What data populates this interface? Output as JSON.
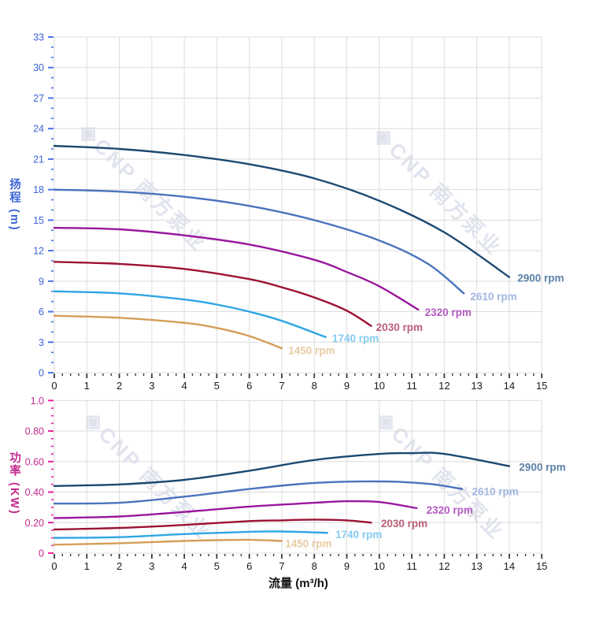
{
  "watermark": {
    "logo_glyph": "◈",
    "text": "CNP 南方泵业"
  },
  "flow_axis_label": "流量 (m³/h)",
  "palette": {
    "grid": "#dcdcdc",
    "head_axis_label": "#3c64d4",
    "head_axis_tick": "#4a73e8",
    "power_axis_label": "#c12a8c",
    "power_axis_tick": "#e8219e",
    "x_axis_label": "#1a1a1a",
    "x_axis_tick": "#3a3a3a"
  },
  "chart_data": [
    {
      "type": "line",
      "id": "head",
      "ylabel": "扬程",
      "yunit": "(m)",
      "xlim": [
        0,
        15
      ],
      "ylim": [
        0,
        33
      ],
      "xtick_step": 1,
      "xminor_step": 0.25,
      "ytick_step": 3,
      "yminor_step": 1,
      "grid": true,
      "yticks": [
        0,
        3,
        6,
        9,
        12,
        15,
        18,
        21,
        24,
        27,
        30,
        33
      ],
      "xticks": [
        0,
        1,
        2,
        3,
        4,
        5,
        6,
        7,
        8,
        9,
        10,
        11,
        12,
        13,
        14,
        15
      ],
      "series": [
        {
          "name": "2900 rpm",
          "color": "#1b4971",
          "label_color": "#5d82a8",
          "label_at": [
            14.25,
            9.35
          ],
          "points": [
            [
              0,
              22.3
            ],
            [
              2,
              22.0
            ],
            [
              4,
              21.4
            ],
            [
              6,
              20.5
            ],
            [
              8,
              19.1
            ],
            [
              10,
              16.9
            ],
            [
              12,
              13.8
            ],
            [
              14,
              9.4
            ]
          ]
        },
        {
          "name": "2610 rpm",
          "color": "#4a73bd",
          "label_color": "#a0b6e2",
          "label_at": [
            12.8,
            7.5
          ],
          "points": [
            [
              0,
              18.0
            ],
            [
              2,
              17.8
            ],
            [
              4,
              17.3
            ],
            [
              6,
              16.4
            ],
            [
              8,
              15.0
            ],
            [
              10,
              13.0
            ],
            [
              11.5,
              10.7
            ],
            [
              12.6,
              7.8
            ]
          ]
        },
        {
          "name": "2320 rpm",
          "color": "#9a179e",
          "label_color": "#b55cc2",
          "label_at": [
            11.4,
            5.95
          ],
          "points": [
            [
              0,
              14.25
            ],
            [
              2,
              14.1
            ],
            [
              4,
              13.5
            ],
            [
              6,
              12.6
            ],
            [
              8,
              11.1
            ],
            [
              9,
              9.9
            ],
            [
              10,
              8.5
            ],
            [
              11.2,
              6.2
            ]
          ]
        },
        {
          "name": "2030 rpm",
          "color": "#9c1132",
          "label_color": "#bb5e78",
          "label_at": [
            9.9,
            4.5
          ],
          "points": [
            [
              0,
              10.9
            ],
            [
              2,
              10.7
            ],
            [
              4,
              10.2
            ],
            [
              6,
              9.2
            ],
            [
              7,
              8.4
            ],
            [
              8,
              7.4
            ],
            [
              9,
              6.1
            ],
            [
              9.75,
              4.6
            ]
          ]
        },
        {
          "name": "1740 rpm",
          "color": "#2ea6e4",
          "label_color": "#85ccf2",
          "label_at": [
            8.55,
            3.4
          ],
          "points": [
            [
              0,
              8.0
            ],
            [
              2,
              7.8
            ],
            [
              4,
              7.2
            ],
            [
              5,
              6.7
            ],
            [
              6,
              6.0
            ],
            [
              7,
              5.1
            ],
            [
              8.35,
              3.5
            ]
          ]
        },
        {
          "name": "1450 rpm",
          "color": "#d49d58",
          "label_color": "#e6cca2",
          "label_at": [
            7.2,
            2.2
          ],
          "points": [
            [
              0,
              5.6
            ],
            [
              2,
              5.4
            ],
            [
              4,
              4.9
            ],
            [
              5,
              4.4
            ],
            [
              6,
              3.6
            ],
            [
              7,
              2.4
            ]
          ]
        }
      ]
    },
    {
      "type": "line",
      "id": "power",
      "ylabel": "功率",
      "yunit": "(KW)",
      "xlabel": "流量 (m³/h)",
      "xlim": [
        0,
        15
      ],
      "ylim": [
        0,
        1.0
      ],
      "xtick_step": 1,
      "xminor_step": 0.25,
      "ytick_step": 0.2,
      "yminor_step": 0.05,
      "grid": true,
      "yticks": [
        0,
        0.2,
        0.4,
        0.6,
        0.8,
        1.0
      ],
      "ytick_labels": [
        "0",
        "0.20",
        "0.40",
        "0.60",
        "0.80",
        "1.0"
      ],
      "xticks": [
        0,
        1,
        2,
        3,
        4,
        5,
        6,
        7,
        8,
        9,
        10,
        11,
        12,
        13,
        14,
        15
      ],
      "series": [
        {
          "name": "2900 rpm",
          "color": "#1b4971",
          "label_color": "#5d82a8",
          "label_at": [
            14.3,
            0.565
          ],
          "points": [
            [
              0,
              0.44
            ],
            [
              2,
              0.45
            ],
            [
              4,
              0.48
            ],
            [
              6,
              0.54
            ],
            [
              8,
              0.61
            ],
            [
              10,
              0.65
            ],
            [
              11,
              0.655
            ],
            [
              12,
              0.65
            ],
            [
              14,
              0.57
            ]
          ]
        },
        {
          "name": "2610 rpm",
          "color": "#4a73bd",
          "label_color": "#a0b6e2",
          "label_at": [
            12.85,
            0.405
          ],
          "points": [
            [
              0,
              0.325
            ],
            [
              2,
              0.33
            ],
            [
              4,
              0.37
            ],
            [
              6,
              0.42
            ],
            [
              8,
              0.46
            ],
            [
              10,
              0.47
            ],
            [
              11.5,
              0.455
            ],
            [
              12.55,
              0.42
            ]
          ]
        },
        {
          "name": "2320 rpm",
          "color": "#9a179e",
          "label_color": "#b55cc2",
          "label_at": [
            11.45,
            0.285
          ],
          "points": [
            [
              0,
              0.23
            ],
            [
              2,
              0.24
            ],
            [
              4,
              0.27
            ],
            [
              6,
              0.305
            ],
            [
              8,
              0.33
            ],
            [
              9,
              0.34
            ],
            [
              10,
              0.335
            ],
            [
              11.15,
              0.295
            ]
          ]
        },
        {
          "name": "2030 rpm",
          "color": "#9c1132",
          "label_color": "#bb5e78",
          "label_at": [
            10.05,
            0.195
          ],
          "points": [
            [
              0,
              0.155
            ],
            [
              2,
              0.165
            ],
            [
              4,
              0.185
            ],
            [
              6,
              0.21
            ],
            [
              7,
              0.215
            ],
            [
              8,
              0.22
            ],
            [
              9,
              0.215
            ],
            [
              9.75,
              0.2
            ]
          ]
        },
        {
          "name": "1740 rpm",
          "color": "#2ea6e4",
          "label_color": "#85ccf2",
          "label_at": [
            8.65,
            0.125
          ],
          "points": [
            [
              0,
              0.1
            ],
            [
              2,
              0.105
            ],
            [
              4,
              0.125
            ],
            [
              6,
              0.14
            ],
            [
              7,
              0.142
            ],
            [
              8.4,
              0.133
            ]
          ]
        },
        {
          "name": "1450 rpm",
          "color": "#d49d58",
          "label_color": "#e6cca2",
          "label_at": [
            7.1,
            0.065
          ],
          "points": [
            [
              0,
              0.055
            ],
            [
              2,
              0.065
            ],
            [
              4,
              0.08
            ],
            [
              5,
              0.085
            ],
            [
              6,
              0.087
            ],
            [
              7,
              0.08
            ]
          ]
        }
      ]
    }
  ]
}
